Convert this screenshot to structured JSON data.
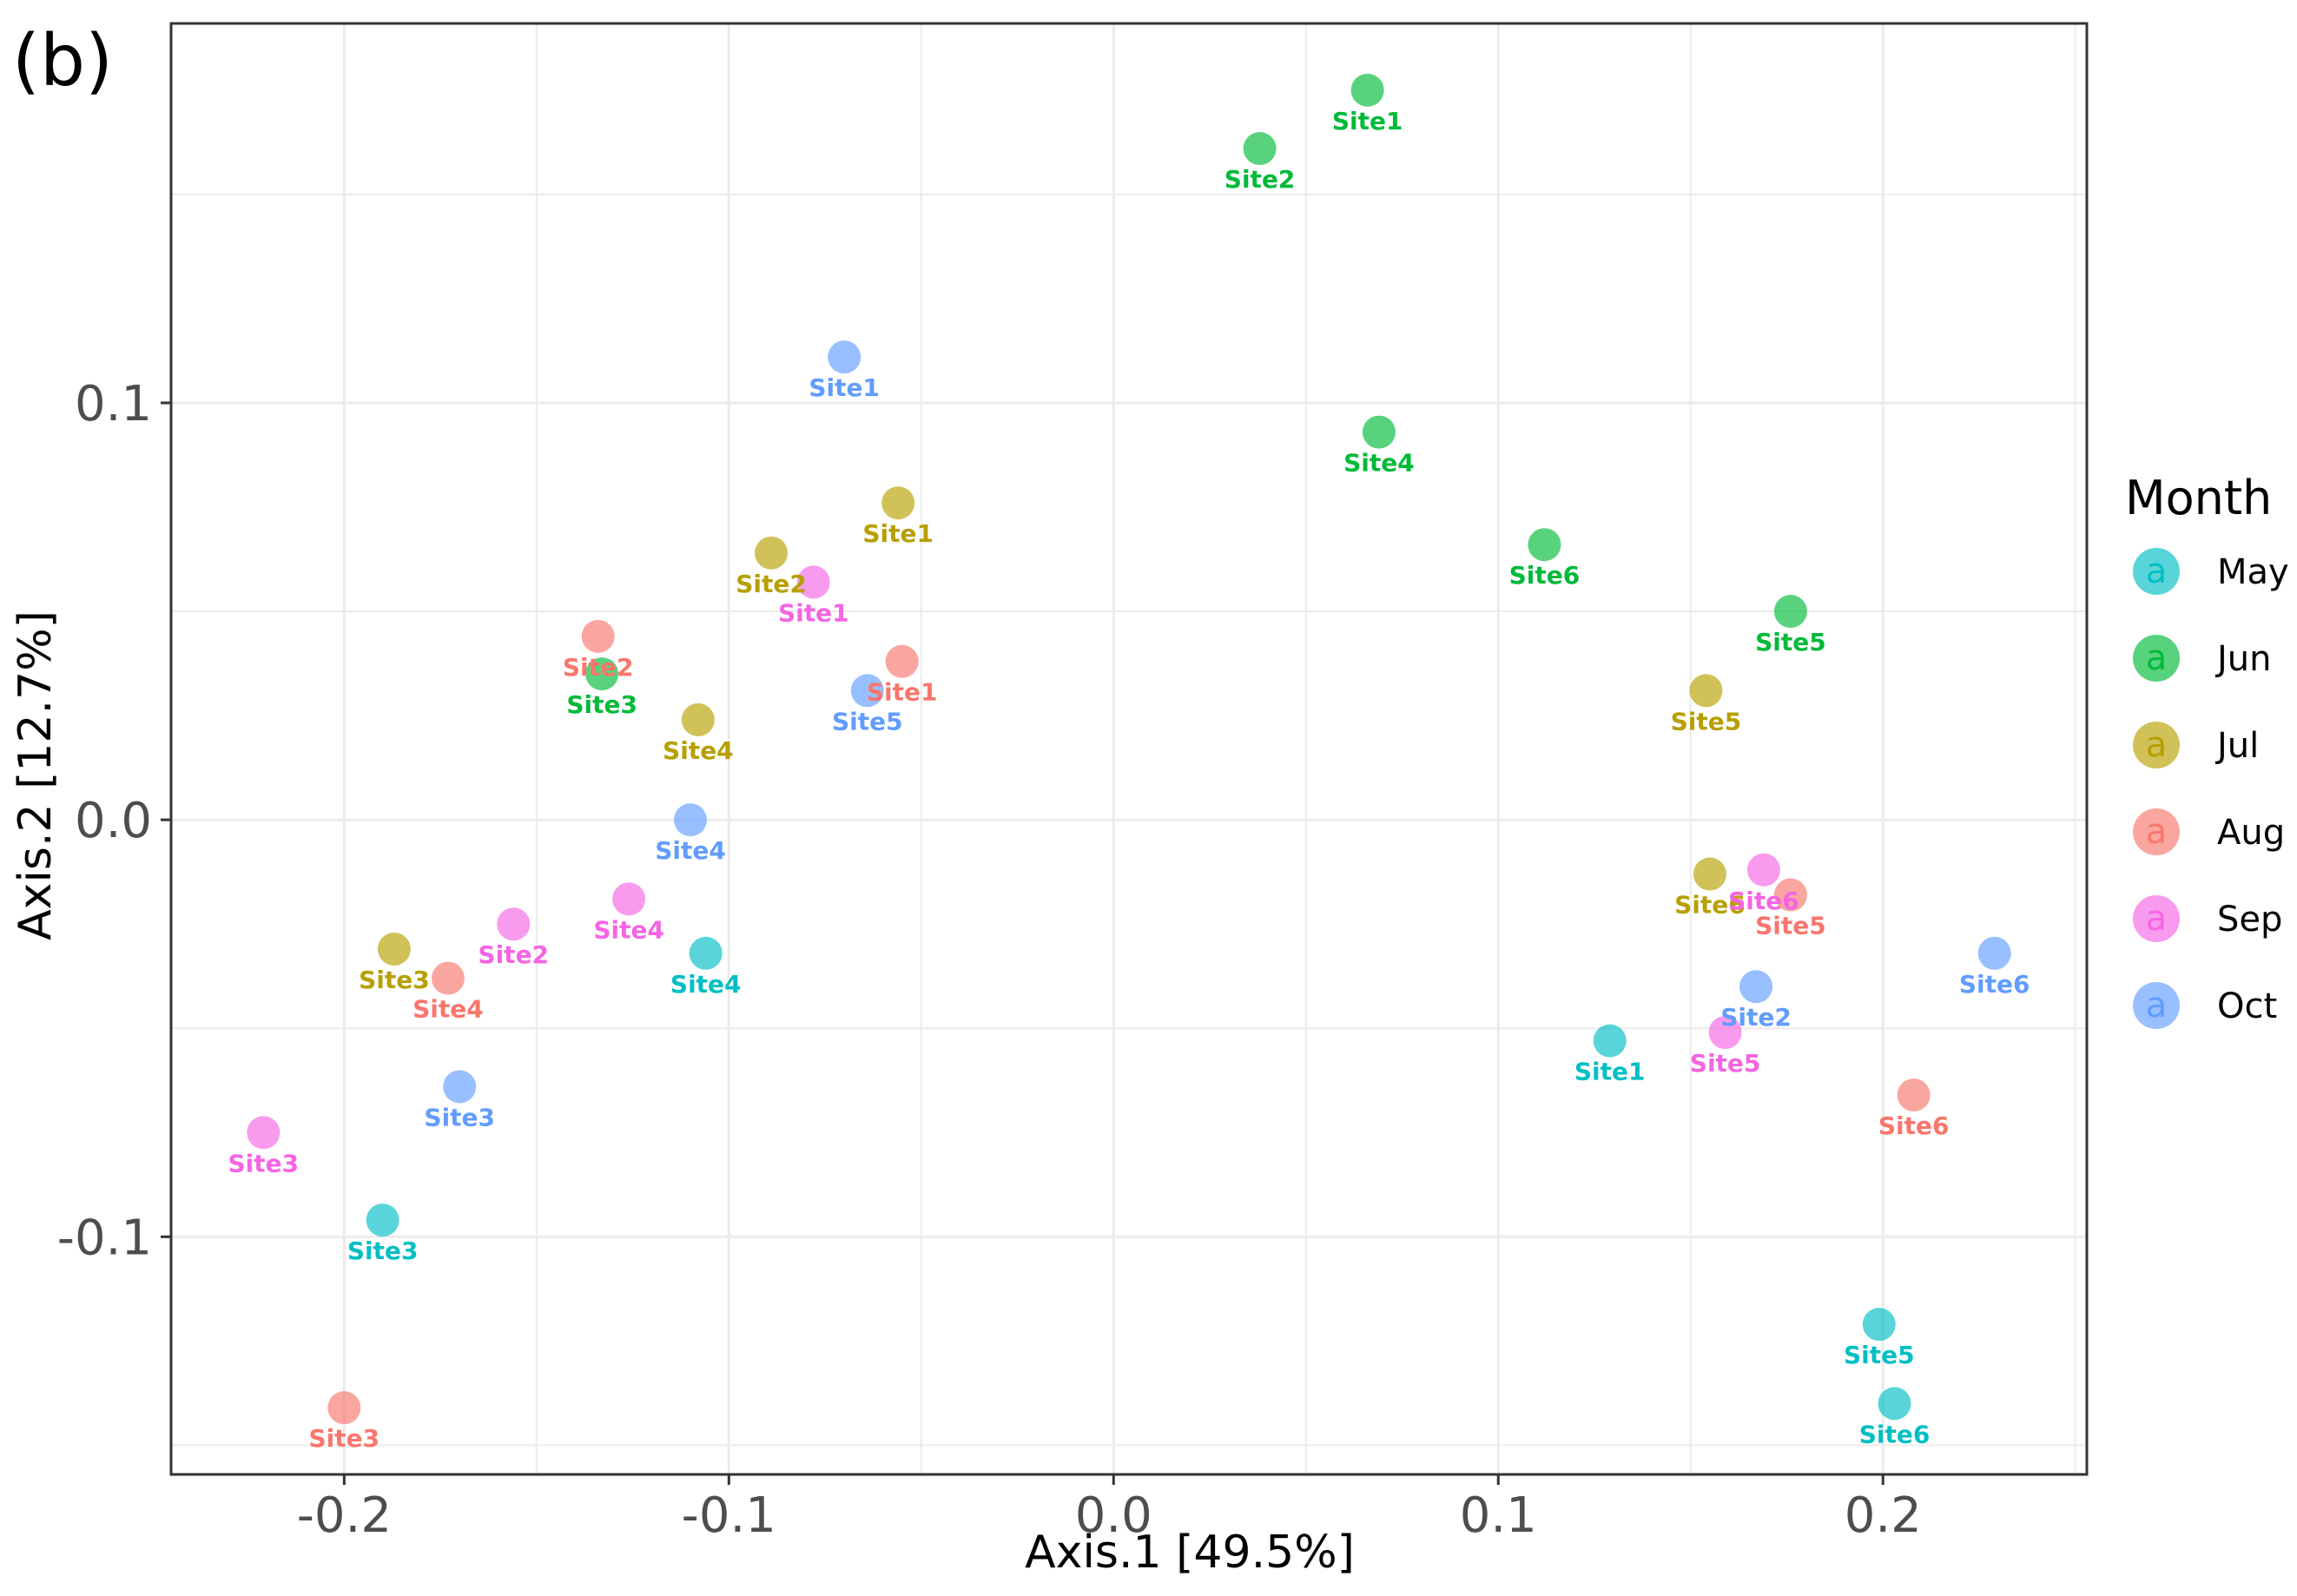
{
  "chart_data": {
    "type": "scatter",
    "panel_label": "(b)",
    "title": "",
    "xlabel": "Axis.1   [49.5%]",
    "ylabel": "Axis.2   [12.7%]",
    "xlim": [
      -0.245,
      0.253
    ],
    "ylim": [
      -0.157,
      0.191
    ],
    "xticks": [
      -0.2,
      -0.1,
      0.0,
      0.1,
      0.2
    ],
    "xtick_labels": [
      "-0.2",
      "-0.1",
      "0.0",
      "0.1",
      "0.2"
    ],
    "yticks": [
      -0.1,
      0.0,
      0.1
    ],
    "ytick_labels": [
      "-0.1",
      "0.0",
      "0.1"
    ],
    "grid": true,
    "legend": {
      "title": "Month",
      "placement": "right",
      "key_glyph": "a"
    },
    "series": [
      {
        "name": "May",
        "color": "#00BFC4",
        "points": [
          {
            "label": "Site1",
            "x": 0.129,
            "y": -0.053
          },
          {
            "label": "Site3",
            "x": -0.19,
            "y": -0.096
          },
          {
            "label": "Site4",
            "x": -0.106,
            "y": -0.032
          },
          {
            "label": "Site5",
            "x": 0.199,
            "y": -0.121
          },
          {
            "label": "Site6",
            "x": 0.203,
            "y": -0.14
          }
        ]
      },
      {
        "name": "Jun",
        "color": "#00BA38",
        "points": [
          {
            "label": "Site1",
            "x": 0.066,
            "y": 0.175
          },
          {
            "label": "Site2",
            "x": 0.038,
            "y": 0.161
          },
          {
            "label": "Site3",
            "x": -0.133,
            "y": 0.035
          },
          {
            "label": "Site4",
            "x": 0.069,
            "y": 0.093
          },
          {
            "label": "Site5",
            "x": 0.176,
            "y": 0.05
          },
          {
            "label": "Site6",
            "x": 0.112,
            "y": 0.066
          }
        ]
      },
      {
        "name": "Jul",
        "color": "#B79F00",
        "points": [
          {
            "label": "Site1",
            "x": -0.056,
            "y": 0.076
          },
          {
            "label": "Site2",
            "x": -0.089,
            "y": 0.064
          },
          {
            "label": "Site3",
            "x": -0.187,
            "y": -0.031
          },
          {
            "label": "Site4",
            "x": -0.108,
            "y": 0.024
          },
          {
            "label": "Site5",
            "x": 0.154,
            "y": 0.031
          },
          {
            "label": "Site6",
            "x": 0.155,
            "y": -0.013
          }
        ]
      },
      {
        "name": "Aug",
        "color": "#F8766D",
        "points": [
          {
            "label": "Site1",
            "x": -0.055,
            "y": 0.038
          },
          {
            "label": "Site2",
            "x": -0.134,
            "y": 0.044
          },
          {
            "label": "Site3",
            "x": -0.2,
            "y": -0.141
          },
          {
            "label": "Site4",
            "x": -0.173,
            "y": -0.038
          },
          {
            "label": "Site5",
            "x": 0.176,
            "y": -0.018
          },
          {
            "label": "Site6",
            "x": 0.208,
            "y": -0.066
          }
        ]
      },
      {
        "name": "Sep",
        "color": "#F564E3",
        "points": [
          {
            "label": "Site1",
            "x": -0.078,
            "y": 0.057
          },
          {
            "label": "Site2",
            "x": -0.156,
            "y": -0.025
          },
          {
            "label": "Site3",
            "x": -0.221,
            "y": -0.075
          },
          {
            "label": "Site4",
            "x": -0.126,
            "y": -0.019
          },
          {
            "label": "Site5",
            "x": 0.159,
            "y": -0.051
          },
          {
            "label": "Site6",
            "x": 0.169,
            "y": -0.012
          }
        ]
      },
      {
        "name": "Oct",
        "color": "#619CFF",
        "points": [
          {
            "label": "Site1",
            "x": -0.07,
            "y": 0.111
          },
          {
            "label": "Site2",
            "x": 0.167,
            "y": -0.04
          },
          {
            "label": "Site3",
            "x": -0.17,
            "y": -0.064
          },
          {
            "label": "Site4",
            "x": -0.11,
            "y": 0.0
          },
          {
            "label": "Site5",
            "x": -0.064,
            "y": 0.031
          },
          {
            "label": "Site6",
            "x": 0.229,
            "y": -0.032
          }
        ]
      }
    ]
  }
}
